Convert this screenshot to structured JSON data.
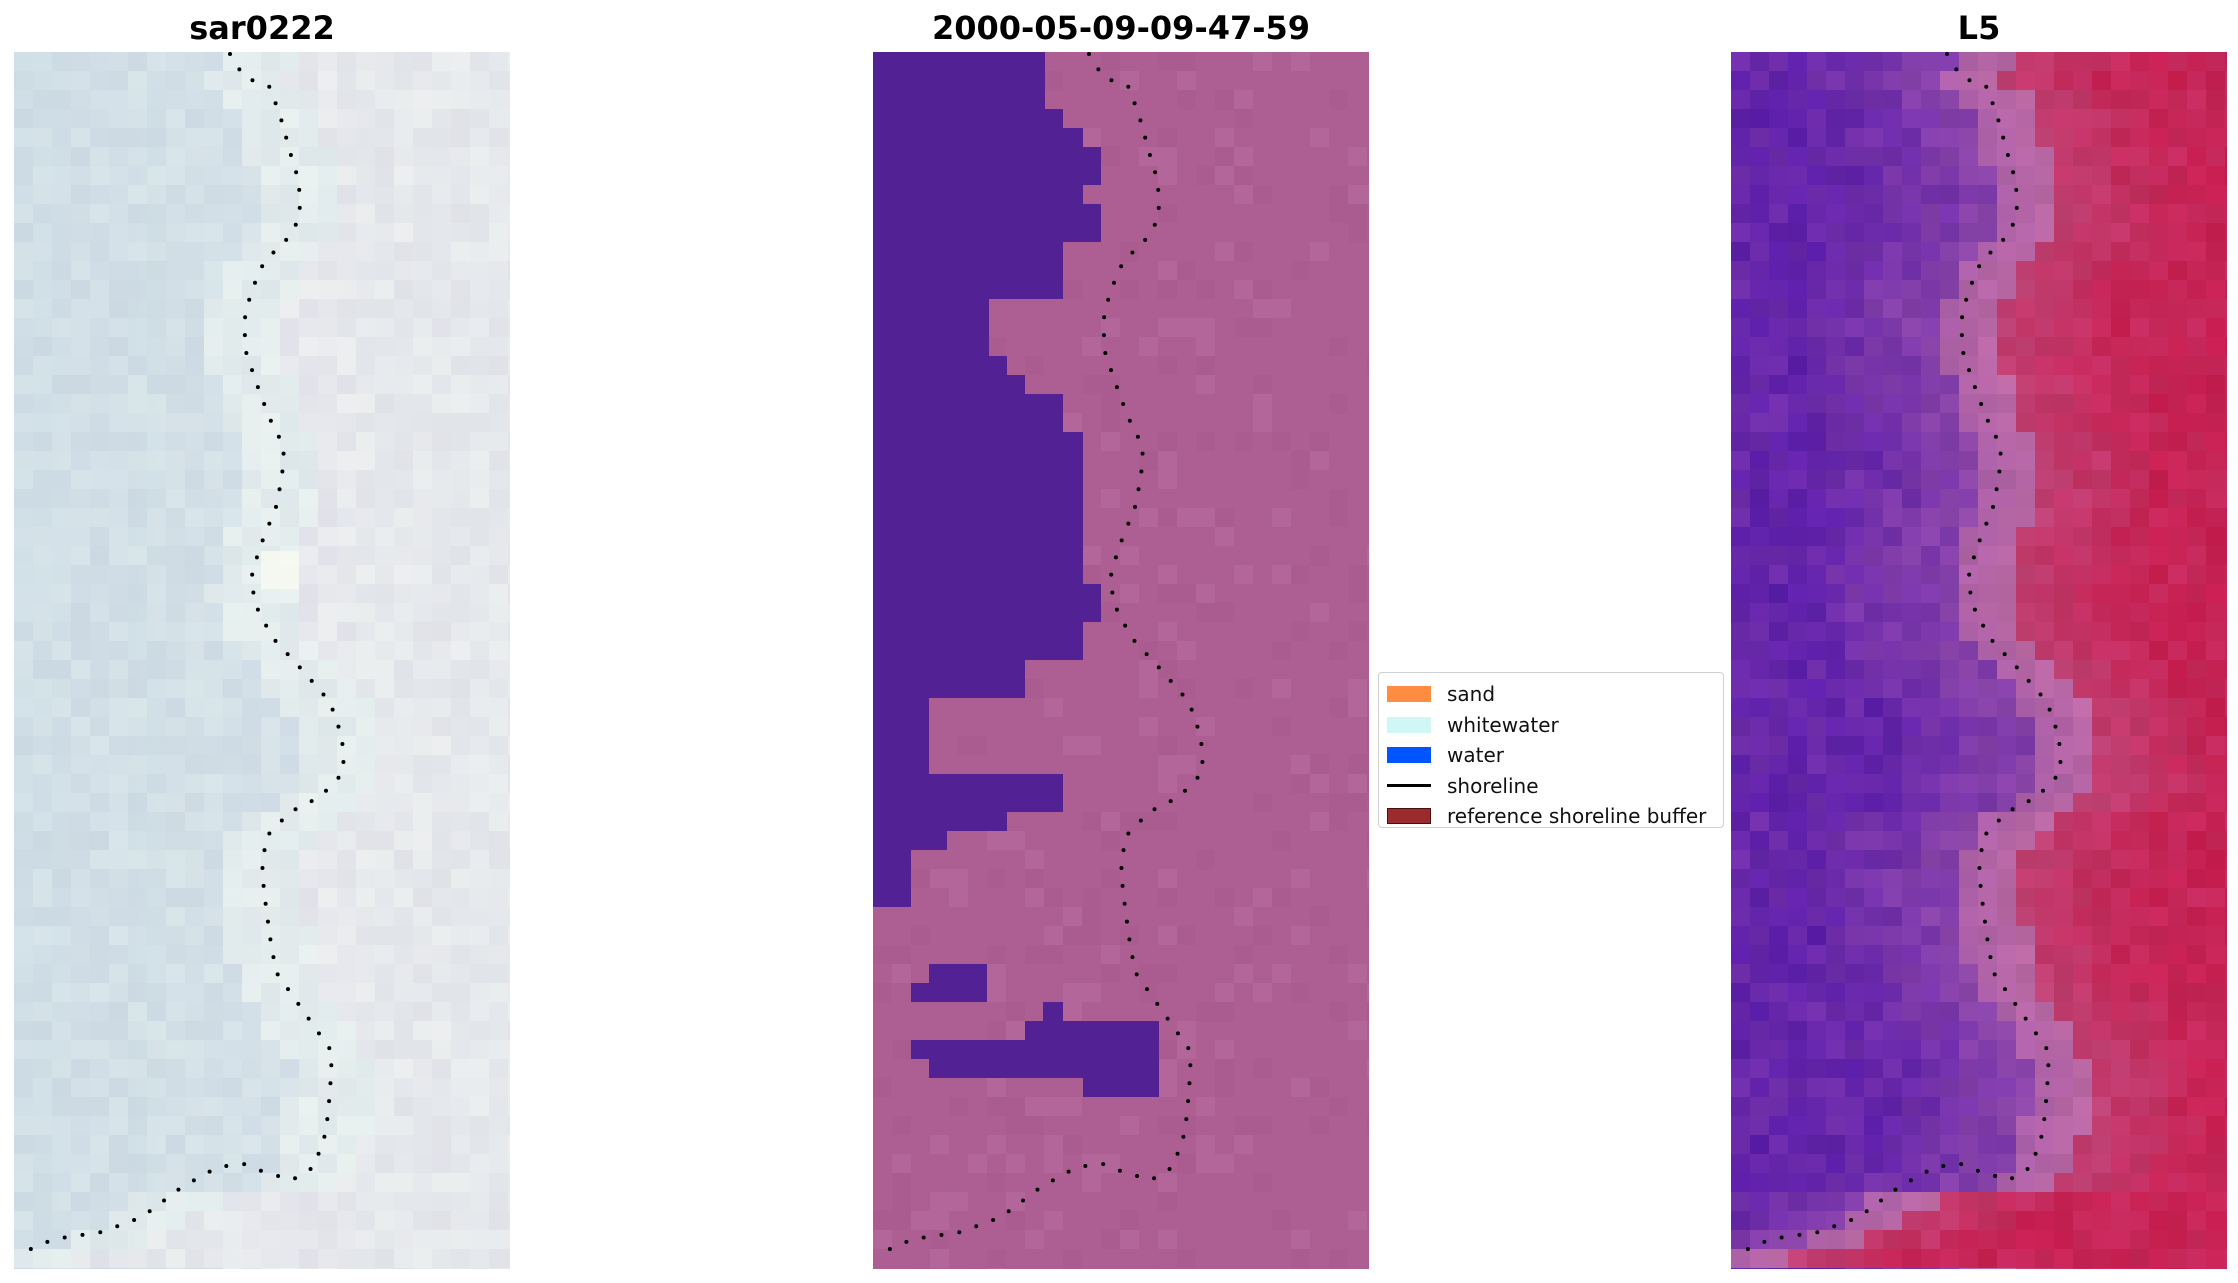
{
  "panels": [
    {
      "title": "sar0222",
      "content": "rgb-image"
    },
    {
      "title": "2000-05-09-09-47-59",
      "content": "classified-image"
    },
    {
      "title": "L5",
      "content": "mndwi-image"
    }
  ],
  "legend": {
    "items": [
      {
        "label": "sand",
        "color": "#ff8c40",
        "kind": "patch"
      },
      {
        "label": "whitewater",
        "color": "#cff7f6",
        "kind": "patch"
      },
      {
        "label": "water",
        "color": "#0055ff",
        "kind": "patch"
      },
      {
        "label": "shoreline",
        "color": "#000000",
        "kind": "line"
      },
      {
        "label": "reference shoreline buffer",
        "color": "#9c2b2d",
        "kind": "patch"
      }
    ]
  },
  "colors": {
    "rgb_base": "#dfe5ea",
    "classified_land": "#ad5f94",
    "classified_water": "#522194",
    "index_low": "#5a1ea8",
    "index_mid": "#a0559f",
    "index_high": "#c92454"
  }
}
